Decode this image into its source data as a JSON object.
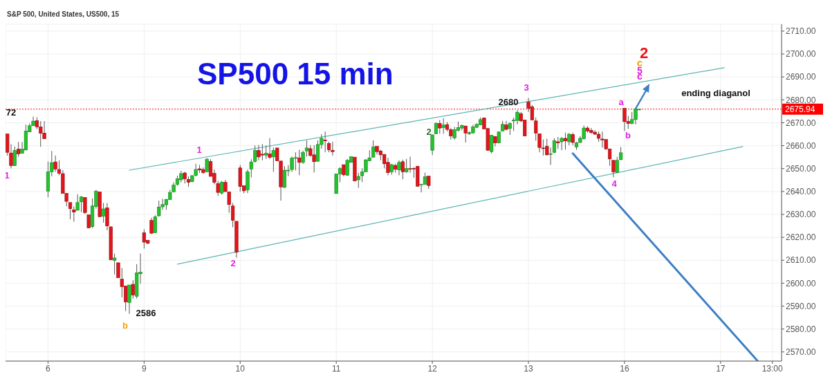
{
  "chart_data": {
    "type": "candlestick",
    "title": "SP500 15 min",
    "subtitle": "S&P 500, United States, US500, 15",
    "categories": [
      null,
      null,
      null,
      null,
      null,
      null,
      null,
      null,
      null,
      null,
      null,
      "6",
      null,
      null,
      null,
      null,
      null,
      null,
      null,
      null,
      null,
      null,
      null,
      null,
      null,
      null,
      null,
      null,
      null,
      null,
      null,
      null,
      null,
      null,
      null,
      null,
      null,
      "9",
      null,
      null,
      null,
      null,
      null,
      null,
      null,
      null,
      null,
      null,
      null,
      null,
      null,
      null,
      null,
      null,
      null,
      null,
      null,
      null,
      null,
      null,
      null,
      null,
      null,
      "10",
      null,
      null,
      null,
      null,
      null,
      null,
      null,
      null,
      null,
      null,
      null,
      null,
      null,
      null,
      null,
      null,
      null,
      null,
      null,
      null,
      null,
      null,
      null,
      null,
      null,
      "11",
      null,
      null,
      null,
      null,
      null,
      null,
      null,
      null,
      null,
      null,
      null,
      null,
      null,
      null,
      null,
      null,
      null,
      null,
      null,
      null,
      null,
      null,
      null,
      null,
      null,
      "12",
      null,
      null,
      null,
      null,
      null,
      null,
      null,
      null,
      null,
      null,
      null,
      null,
      null,
      null,
      null,
      null,
      null,
      null,
      null,
      null,
      null,
      null,
      null,
      null,
      null,
      "13",
      null,
      null,
      null,
      null,
      null,
      null,
      null,
      null,
      null,
      null,
      null,
      null,
      null,
      null,
      null,
      null,
      null,
      null,
      null,
      null,
      null,
      null,
      null,
      null,
      null,
      "16",
      null,
      null,
      null,
      null,
      null,
      null,
      null,
      null,
      null,
      null,
      null,
      null,
      null,
      null,
      null,
      null,
      null,
      null,
      null,
      null,
      null,
      null,
      null,
      null,
      null,
      "17",
      null,
      null,
      null,
      null,
      null,
      null,
      null,
      null,
      null,
      null,
      null,
      null,
      null,
      "13:00",
      null,
      null
    ],
    "ylim": [
      2566,
      2713
    ],
    "yticks": [
      {
        "value": 2570,
        "label": "2570.00"
      },
      {
        "value": 2580,
        "label": "2580.00"
      },
      {
        "value": 2590,
        "label": "2590.00"
      },
      {
        "value": 2600,
        "label": "2600.00"
      },
      {
        "value": 2610,
        "label": "2610.00"
      },
      {
        "value": 2620,
        "label": "2620.00"
      },
      {
        "value": 2630,
        "label": "2630.00"
      },
      {
        "value": 2640,
        "label": "2640.00"
      },
      {
        "value": 2650,
        "label": "2650.00"
      },
      {
        "value": 2660,
        "label": "2660.00"
      },
      {
        "value": 2670,
        "label": "2670.00"
      },
      {
        "value": 2680,
        "label": "2680.00"
      },
      {
        "value": 2690,
        "label": "2690.00"
      },
      {
        "value": 2700,
        "label": "2700.00"
      },
      {
        "value": 2710,
        "label": "2710.00"
      }
    ],
    "grid": true,
    "ohlc": [
      [
        2665.1,
        2665.1,
        2655.7,
        2657.1
      ],
      [
        2656.8,
        2660.7,
        2650.1,
        2651.3
      ],
      [
        2651.3,
        2659.6,
        2651.1,
        2657.9
      ],
      [
        2658.5,
        2661.6,
        2655.1,
        2656.4
      ],
      [
        2656.7,
        2661.6,
        2656.6,
        2658.5
      ],
      [
        2658.1,
        2669.2,
        2658.1,
        2666.4
      ],
      [
        2666.0,
        2669.7,
        2666.0,
        2668.7
      ],
      [
        2668.7,
        2672.7,
        2668.7,
        2670.7
      ],
      [
        2670.9,
        2672.4,
        2667.2,
        2668.2
      ],
      [
        2668.2,
        2670.7,
        2659.5,
        2665.4
      ],
      [
        2665.5,
        2670.7,
        2663.0,
        2663.0
      ],
      [
        2640.2,
        2653.1,
        2637.5,
        2648.6
      ],
      [
        2648.6,
        2657.7,
        2646.6,
        2652.6
      ],
      [
        2652.9,
        2655.7,
        2648.6,
        2649.8
      ],
      [
        2649.6,
        2653.6,
        2647.1,
        2647.9
      ],
      [
        2647.8,
        2649.3,
        2639.2,
        2639.2
      ],
      [
        2639.2,
        2639.2,
        2633.5,
        2635.7
      ],
      [
        2635.2,
        2635.2,
        2627.9,
        2632.5
      ],
      [
        2632.0,
        2633.5,
        2626.8,
        2631.0
      ],
      [
        2631.8,
        2638.8,
        2631.8,
        2635.2
      ],
      [
        2635.5,
        2638.1,
        2631.0,
        2637.6
      ],
      [
        2637.4,
        2637.4,
        2630.2,
        2630.8
      ],
      [
        2629.8,
        2629.8,
        2624.0,
        2624.1
      ],
      [
        2624.7,
        2637.0,
        2624.0,
        2633.7
      ],
      [
        2633.5,
        2640.7,
        2632.5,
        2640.1
      ],
      [
        2639.8,
        2639.8,
        2629.0,
        2629.0
      ],
      [
        2629.2,
        2635.0,
        2626.4,
        2632.4
      ],
      [
        2632.9,
        2635.0,
        2623.1,
        2625.0
      ],
      [
        2624.6,
        2624.6,
        2610.2,
        2610.2
      ],
      [
        2609.9,
        2612.9,
        2603.8,
        2611.0
      ],
      [
        2608.9,
        2608.9,
        2602.4,
        2602.4
      ],
      [
        2601.8,
        2606.6,
        2593.8,
        2598.5
      ],
      [
        2598.8,
        2598.8,
        2587.8,
        2591.8
      ],
      [
        2591.6,
        2599.2,
        2586.6,
        2599.2
      ],
      [
        2599.5,
        2601.3,
        2593.3,
        2594.8
      ],
      [
        2594.3,
        2608.3,
        2593.3,
        2604.5
      ],
      [
        2604.1,
        2612.9,
        2599.8,
        2604.8
      ],
      [
        2622.0,
        2623.5,
        2615.1,
        2617.9
      ],
      [
        2618.7,
        2618.9,
        2617.0,
        2617.4
      ],
      [
        2627.4,
        2628.5,
        2621.4,
        2621.8
      ],
      [
        2622.0,
        2629.6,
        2622.0,
        2629.0
      ],
      [
        2629.4,
        2636.0,
        2629.0,
        2633.2
      ],
      [
        2633.3,
        2636.8,
        2632.0,
        2634.3
      ],
      [
        2634.2,
        2636.8,
        2632.0,
        2636.5
      ],
      [
        2636.5,
        2640.7,
        2636.3,
        2639.6
      ],
      [
        2639.9,
        2644.0,
        2639.6,
        2642.8
      ],
      [
        2643.1,
        2646.9,
        2642.5,
        2645.6
      ],
      [
        2645.1,
        2649.0,
        2644.0,
        2647.8
      ],
      [
        2648.1,
        2648.6,
        2643.5,
        2645.5
      ],
      [
        2645.3,
        2646.6,
        2642.0,
        2644.0
      ],
      [
        2644.4,
        2647.2,
        2644.0,
        2646.9
      ],
      [
        2647.0,
        2652.1,
        2646.6,
        2649.6
      ],
      [
        2649.9,
        2651.6,
        2648.1,
        2649.4
      ],
      [
        2649.6,
        2650.5,
        2647.6,
        2648.3
      ],
      [
        2648.6,
        2654.6,
        2648.6,
        2654.1
      ],
      [
        2653.1,
        2654.1,
        2646.6,
        2646.6
      ],
      [
        2647.9,
        2649.6,
        2643.1,
        2644.0
      ],
      [
        2643.5,
        2644.6,
        2638.1,
        2639.6
      ],
      [
        2639.3,
        2644.6,
        2638.7,
        2644.0
      ],
      [
        2644.0,
        2645.1,
        2639.6,
        2640.0
      ],
      [
        2639.8,
        2639.8,
        2630.7,
        2634.3
      ],
      [
        2633.7,
        2635.0,
        2624.4,
        2627.4
      ],
      [
        2627.0,
        2627.0,
        2611.1,
        2613.5
      ],
      [
        2650.3,
        2651.6,
        2640.0,
        2642.2
      ],
      [
        2642.5,
        2642.5,
        2639.2,
        2640.3
      ],
      [
        2640.7,
        2649.6,
        2639.3,
        2648.6
      ],
      [
        2649.8,
        2654.1,
        2646.1,
        2652.9
      ],
      [
        2653.1,
        2660.1,
        2652.6,
        2657.9
      ],
      [
        2657.9,
        2660.3,
        2653.6,
        2655.1
      ],
      [
        2656.3,
        2660.7,
        2653.6,
        2655.9
      ],
      [
        2655.9,
        2660.1,
        2654.2,
        2656.7
      ],
      [
        2656.4,
        2663.3,
        2654.2,
        2654.9
      ],
      [
        2655.1,
        2659.2,
        2648.6,
        2657.9
      ],
      [
        2659.0,
        2659.0,
        2653.4,
        2653.4
      ],
      [
        2653.3,
        2653.3,
        2636.0,
        2642.0
      ],
      [
        2641.8,
        2651.1,
        2641.5,
        2649.3
      ],
      [
        2649.0,
        2651.5,
        2646.7,
        2649.3
      ],
      [
        2649.6,
        2655.3,
        2648.6,
        2654.6
      ],
      [
        2654.7,
        2657.1,
        2649.2,
        2654.8
      ],
      [
        2654.7,
        2658.2,
        2647.1,
        2652.7
      ],
      [
        2652.7,
        2657.8,
        2652.0,
        2657.1
      ],
      [
        2657.7,
        2662.3,
        2655.2,
        2659.0
      ],
      [
        2658.7,
        2660.2,
        2655.2,
        2655.7
      ],
      [
        2656.0,
        2660.2,
        2648.3,
        2653.0
      ],
      [
        2653.2,
        2662.3,
        2653.0,
        2660.5
      ],
      [
        2660.5,
        2665.0,
        2658.7,
        2663.2
      ],
      [
        2662.5,
        2666.2,
        2657.1,
        2662.1
      ],
      [
        2661.0,
        2661.7,
        2657.1,
        2658.2
      ],
      [
        2658.0,
        2661.7,
        2655.7,
        2657.4
      ],
      [
        2639.1,
        2647.7,
        2639.1,
        2647.7
      ],
      [
        2647.7,
        2650.6,
        2644.1,
        2650.0
      ],
      [
        2651.7,
        2651.7,
        2646.6,
        2647.3
      ],
      [
        2647.1,
        2654.2,
        2646.9,
        2653.6
      ],
      [
        2652.7,
        2655.2,
        2652.7,
        2655.2
      ],
      [
        2655.0,
        2655.0,
        2644.6,
        2644.6
      ],
      [
        2645.1,
        2648.2,
        2641.6,
        2646.6
      ],
      [
        2646.9,
        2650.1,
        2644.1,
        2648.6
      ],
      [
        2648.6,
        2654.2,
        2648.6,
        2653.8
      ],
      [
        2653.4,
        2658.0,
        2653.2,
        2654.7
      ],
      [
        2655.0,
        2662.3,
        2654.7,
        2659.4
      ],
      [
        2659.7,
        2659.7,
        2656.2,
        2657.4
      ],
      [
        2657.7,
        2658.2,
        2653.6,
        2656.0
      ],
      [
        2656.2,
        2656.2,
        2650.1,
        2652.1
      ],
      [
        2652.7,
        2654.7,
        2647.1,
        2648.3
      ],
      [
        2648.6,
        2652.1,
        2647.3,
        2651.7
      ],
      [
        2651.4,
        2652.1,
        2648.2,
        2649.7
      ],
      [
        2649.4,
        2653.6,
        2647.1,
        2652.7
      ],
      [
        2653.0,
        2653.9,
        2645.3,
        2648.6
      ],
      [
        2648.6,
        2654.2,
        2648.2,
        2650.0
      ],
      [
        2650.0,
        2655.2,
        2648.2,
        2649.9
      ],
      [
        2650.1,
        2650.6,
        2646.0,
        2650.0
      ],
      [
        2651.0,
        2651.2,
        2642.3,
        2642.3
      ],
      [
        2643.1,
        2643.2,
        2639.6,
        2643.2
      ],
      [
        2643.1,
        2648.2,
        2643.1,
        2646.4
      ],
      [
        2646.7,
        2646.7,
        2641.2,
        2642.6
      ],
      [
        2658.0,
        2664.8,
        2655.9,
        2664.7
      ],
      [
        2665.2,
        2670.2,
        2665.2,
        2669.7
      ],
      [
        2669.7,
        2671.2,
        2665.2,
        2667.7
      ],
      [
        2667.9,
        2672.0,
        2665.2,
        2669.0
      ],
      [
        2669.2,
        2670.3,
        2666.2,
        2667.1
      ],
      [
        2667.0,
        2667.7,
        2662.7,
        2664.2
      ],
      [
        2663.4,
        2668.2,
        2662.7,
        2667.0
      ],
      [
        2666.7,
        2670.5,
        2666.2,
        2667.9
      ],
      [
        2667.7,
        2669.3,
        2666.7,
        2668.8
      ],
      [
        2668.6,
        2668.6,
        2661.4,
        2665.5
      ],
      [
        2665.2,
        2666.2,
        2664.7,
        2665.7
      ],
      [
        2665.6,
        2669.1,
        2665.2,
        2668.2
      ],
      [
        2668.0,
        2669.7,
        2667.7,
        2669.3
      ],
      [
        2669.1,
        2672.3,
        2668.9,
        2671.4
      ],
      [
        2672.1,
        2672.3,
        2667.3,
        2667.3
      ],
      [
        2667.5,
        2667.5,
        2657.7,
        2658.0
      ],
      [
        2657.4,
        2664.7,
        2656.7,
        2664.5
      ],
      [
        2664.0,
        2664.2,
        2659.7,
        2661.2
      ],
      [
        2661.2,
        2666.2,
        2661.0,
        2666.0
      ],
      [
        2666.4,
        2670.8,
        2666.2,
        2669.3
      ],
      [
        2669.1,
        2670.8,
        2666.7,
        2667.1
      ],
      [
        2667.5,
        2670.3,
        2664.7,
        2669.7
      ],
      [
        2670.8,
        2672.3,
        2666.4,
        2671.2
      ],
      [
        2671.0,
        2675.5,
        2669.3,
        2674.6
      ],
      [
        2674.0,
        2674.7,
        2670.3,
        2670.8
      ],
      [
        2671.2,
        2671.2,
        2664.2,
        2664.2
      ],
      [
        2679.0,
        2680.8,
        2674.7,
        2676.3
      ],
      [
        2677.0,
        2677.8,
        2671.2,
        2671.2
      ],
      [
        2670.8,
        2672.3,
        2662.2,
        2665.5
      ],
      [
        2665.2,
        2665.2,
        2657.1,
        2659.2
      ],
      [
        2659.0,
        2662.7,
        2655.7,
        2658.9
      ],
      [
        2659.7,
        2663.0,
        2655.7,
        2656.0
      ],
      [
        2656.2,
        2659.2,
        2651.6,
        2656.5
      ],
      [
        2657.1,
        2663.2,
        2656.7,
        2662.2
      ],
      [
        2661.7,
        2663.8,
        2658.6,
        2661.2
      ],
      [
        2661.7,
        2663.8,
        2658.0,
        2663.2
      ],
      [
        2663.2,
        2665.7,
        2658.2,
        2662.1
      ],
      [
        2661.7,
        2665.5,
        2660.2,
        2665.0
      ],
      [
        2664.9,
        2665.7,
        2660.2,
        2661.4
      ],
      [
        2659.4,
        2661.7,
        2658.2,
        2661.2
      ],
      [
        2661.4,
        2664.2,
        2661.2,
        2663.2
      ],
      [
        2663.0,
        2668.8,
        2662.7,
        2667.7
      ],
      [
        2667.7,
        2668.4,
        2665.7,
        2666.4
      ],
      [
        2666.7,
        2667.7,
        2665.2,
        2665.7
      ],
      [
        2665.9,
        2666.7,
        2664.7,
        2665.0
      ],
      [
        2665.0,
        2666.2,
        2661.7,
        2663.2
      ],
      [
        2662.9,
        2666.2,
        2659.2,
        2662.5
      ],
      [
        2662.7,
        2662.7,
        2658.2,
        2658.6
      ],
      [
        2658.6,
        2658.6,
        2651.2,
        2654.2
      ],
      [
        2653.6,
        2653.6,
        2646.2,
        2648.6
      ],
      [
        2648.3,
        2655.1,
        2648.1,
        2653.6
      ],
      [
        2653.9,
        2659.4,
        2653.6,
        2656.9
      ],
      [
        2676.3,
        2676.3,
        2666.4,
        2670.5
      ],
      [
        2670.6,
        2673.0,
        2667.3,
        2669.7
      ],
      [
        2669.7,
        2674.7,
        2669.3,
        2671.4
      ],
      [
        2671.4,
        2676.3,
        2669.3,
        2676.1
      ],
      [
        2675.9,
        2676.0,
        2675.8,
        2675.9
      ],
      null,
      null,
      null,
      null,
      null,
      null,
      null,
      null,
      null,
      null,
      null,
      null,
      null,
      null,
      null,
      null,
      null,
      null,
      null,
      null,
      null,
      null,
      null,
      null,
      null,
      null,
      null,
      null,
      null,
      null,
      null,
      null,
      null,
      null,
      null,
      null,
      null,
      null
    ],
    "series": [
      {
        "type": "line",
        "color": "#5ab4b4",
        "values": [
          null,
          null,
          null,
          null,
          null,
          null,
          null,
          null,
          null,
          null,
          null,
          null,
          null,
          null,
          null,
          null,
          null,
          null,
          null,
          null,
          null,
          null,
          null,
          null,
          null,
          null,
          null,
          null,
          null,
          null,
          null,
          null,
          null,
          2649.3,
          null,
          null,
          null,
          null,
          null,
          null,
          null,
          null,
          null,
          null,
          null,
          null,
          null,
          null,
          null,
          null,
          null,
          null,
          null,
          null,
          null,
          null,
          null,
          null,
          null,
          null,
          null,
          null,
          null,
          null,
          null,
          null,
          null,
          null,
          null,
          null,
          null,
          null,
          null,
          null,
          null,
          null,
          null,
          null,
          null,
          null,
          null,
          null,
          null,
          null,
          null,
          null,
          null,
          null,
          null,
          null,
          null,
          null,
          null,
          null,
          null,
          null,
          null,
          null,
          null,
          null,
          null,
          null,
          null,
          null,
          null,
          null,
          null,
          null,
          null,
          null,
          null,
          null,
          null,
          null,
          null,
          null,
          null,
          null,
          null,
          null,
          null,
          null,
          null,
          null,
          null,
          null,
          null,
          null,
          null,
          null,
          null,
          null,
          null,
          null,
          null,
          null,
          null,
          null,
          null,
          null,
          null,
          null,
          null,
          null,
          null,
          null,
          null,
          null,
          null,
          null,
          null,
          null,
          null,
          null,
          null,
          null,
          null,
          null,
          null,
          null,
          null,
          null,
          null,
          null,
          null,
          null,
          null,
          null,
          null,
          null,
          null,
          null,
          null,
          null,
          null,
          null,
          null,
          null,
          null,
          null,
          null,
          null,
          null,
          null,
          null,
          null,
          null,
          null,
          null,
          null,
          null,
          null,
          null,
          null,
          2694.0,
          null,
          null,
          null,
          null,
          null,
          null,
          null,
          null,
          null,
          null,
          null,
          null,
          null,
          null,
          null
        ]
      },
      {
        "type": "line",
        "color": "#5ab4b4",
        "values": [
          null,
          null,
          null,
          null,
          null,
          null,
          null,
          null,
          null,
          null,
          null,
          null,
          null,
          null,
          null,
          null,
          null,
          null,
          null,
          null,
          null,
          null,
          null,
          null,
          null,
          null,
          null,
          null,
          null,
          null,
          null,
          null,
          null,
          null,
          null,
          null,
          null,
          null,
          null,
          null,
          null,
          null,
          null,
          null,
          null,
          null,
          2608.3,
          null,
          null,
          null,
          null,
          null,
          null,
          null,
          null,
          null,
          null,
          null,
          null,
          null,
          null,
          null,
          null,
          null,
          null,
          null,
          null,
          null,
          null,
          null,
          null,
          null,
          null,
          null,
          null,
          null,
          null,
          null,
          null,
          null,
          null,
          null,
          null,
          null,
          null,
          null,
          null,
          null,
          null,
          null,
          null,
          null,
          null,
          null,
          null,
          null,
          null,
          null,
          null,
          null,
          null,
          null,
          null,
          null,
          null,
          null,
          null,
          null,
          null,
          null,
          null,
          null,
          null,
          null,
          null,
          null,
          null,
          null,
          null,
          null,
          null,
          null,
          null,
          null,
          null,
          null,
          null,
          null,
          null,
          null,
          null,
          null,
          null,
          null,
          null,
          null,
          null,
          null,
          null,
          null,
          null,
          null,
          null,
          null,
          null,
          null,
          null,
          null,
          null,
          null,
          null,
          null,
          null,
          null,
          null,
          null,
          null,
          null,
          null,
          null,
          null,
          null,
          null,
          null,
          null,
          null,
          null,
          null,
          null,
          null,
          null,
          null,
          null,
          null,
          null,
          null,
          null,
          null,
          null,
          null,
          null,
          null,
          null,
          null,
          null,
          null,
          null,
          null,
          null,
          null,
          null,
          null,
          null,
          null,
          null,
          null,
          null,
          null,
          null,
          2659.6,
          null,
          null,
          null,
          null,
          null,
          null,
          null,
          null,
          null,
          null
        ]
      },
      {
        "type": "line",
        "color": "#3d7fc4",
        "values": [
          null,
          null,
          null,
          null,
          null,
          null,
          null,
          null,
          null,
          null,
          null,
          null,
          null,
          null,
          null,
          null,
          null,
          null,
          null,
          null,
          null,
          null,
          null,
          null,
          null,
          null,
          null,
          null,
          null,
          null,
          null,
          null,
          null,
          null,
          null,
          null,
          null,
          null,
          null,
          null,
          null,
          null,
          null,
          null,
          null,
          null,
          null,
          null,
          null,
          null,
          null,
          null,
          null,
          null,
          null,
          null,
          null,
          null,
          null,
          null,
          null,
          null,
          null,
          null,
          null,
          null,
          null,
          null,
          null,
          null,
          null,
          null,
          null,
          null,
          null,
          null,
          null,
          null,
          null,
          null,
          null,
          null,
          null,
          null,
          null,
          null,
          null,
          null,
          null,
          null,
          null,
          null,
          null,
          null,
          null,
          null,
          null,
          null,
          null,
          null,
          null,
          null,
          null,
          null,
          null,
          null,
          null,
          null,
          null,
          null,
          null,
          null,
          null,
          null,
          null,
          null,
          null,
          null,
          null,
          null,
          null,
          null,
          null,
          null,
          null,
          null,
          null,
          null,
          null,
          null,
          null,
          null,
          null,
          null,
          null,
          null,
          null,
          null,
          null,
          null,
          null,
          null,
          null,
          null,
          null,
          null,
          null,
          null,
          null,
          null,
          null,
          null,
          null,
          2656.6,
          null,
          null,
          null,
          null,
          null,
          null,
          null,
          null,
          null,
          null,
          null,
          null,
          null,
          null,
          null,
          null,
          null,
          null,
          null,
          null,
          null,
          null,
          null,
          null,
          null,
          null,
          null,
          null,
          null,
          null,
          null,
          null,
          null,
          null,
          null,
          null,
          null,
          null,
          null,
          null,
          null,
          null,
          null,
          null,
          null,
          null,
          null,
          null,
          null,
          2566.1,
          null,
          null,
          null,
          null,
          null,
          null
        ]
      }
    ],
    "line_style": "solid",
    "ref_lines": [
      {
        "axis": "y",
        "value": 2675.94,
        "label": "2675.94",
        "color": "#ff0000",
        "line_style": "dotted"
      }
    ],
    "annotations": [
      "72",
      "1",
      "b",
      "2586",
      "1",
      "2",
      "2",
      "2680",
      "3",
      "a",
      "b",
      "4",
      "2",
      "c",
      "5",
      "c",
      "ending diaganol"
    ]
  }
}
